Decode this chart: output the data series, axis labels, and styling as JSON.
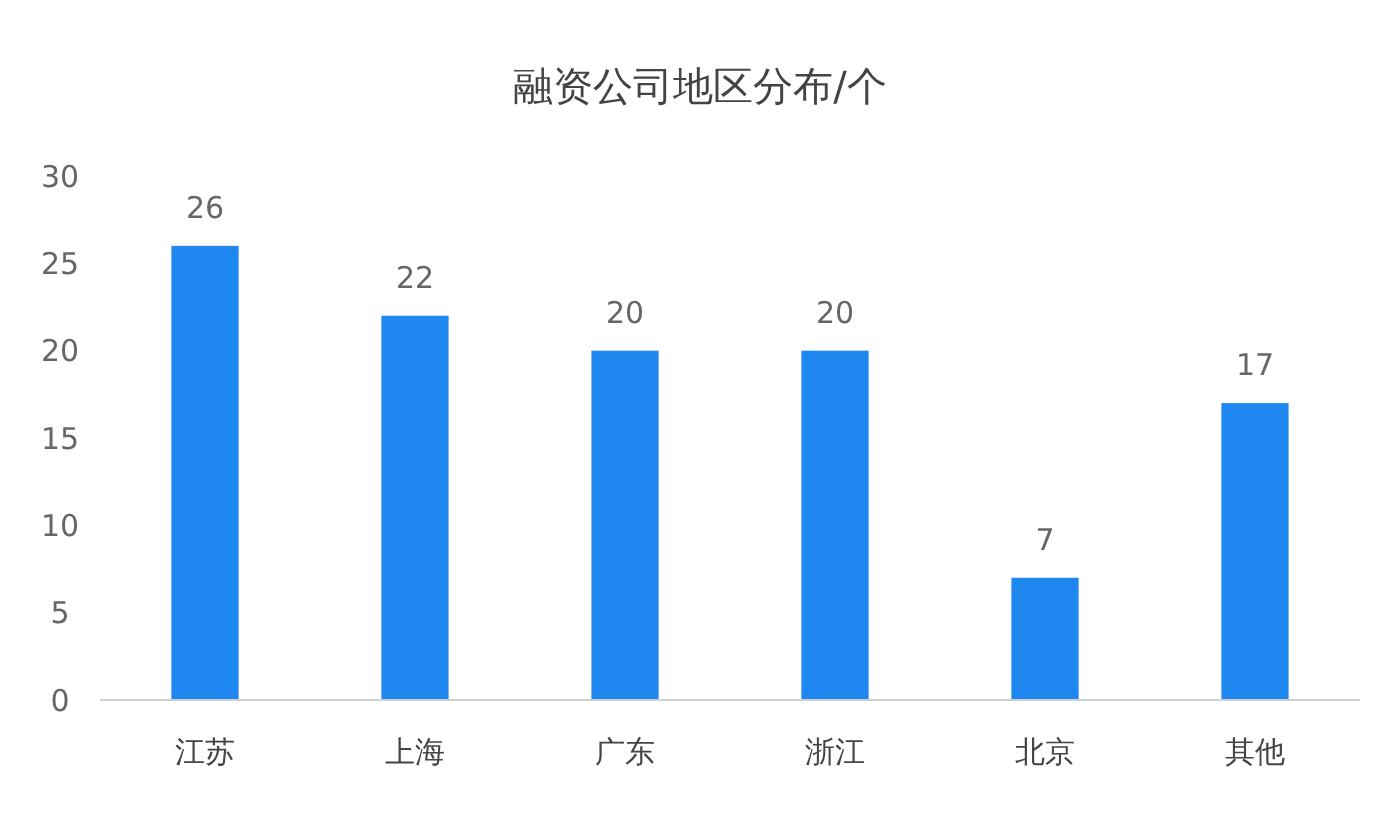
{
  "chart_data": {
    "type": "bar",
    "title": "融资公司地区分布/个",
    "categories": [
      "江苏",
      "上海",
      "广东",
      "浙江",
      "北京",
      "其他"
    ],
    "values": [
      26,
      22,
      20,
      20,
      7,
      17
    ],
    "color": "#1e88f0",
    "ylim": [
      0,
      30
    ],
    "yticks": [
      0,
      5,
      10,
      15,
      20,
      25,
      30
    ],
    "grid": false,
    "data_labels": true
  }
}
